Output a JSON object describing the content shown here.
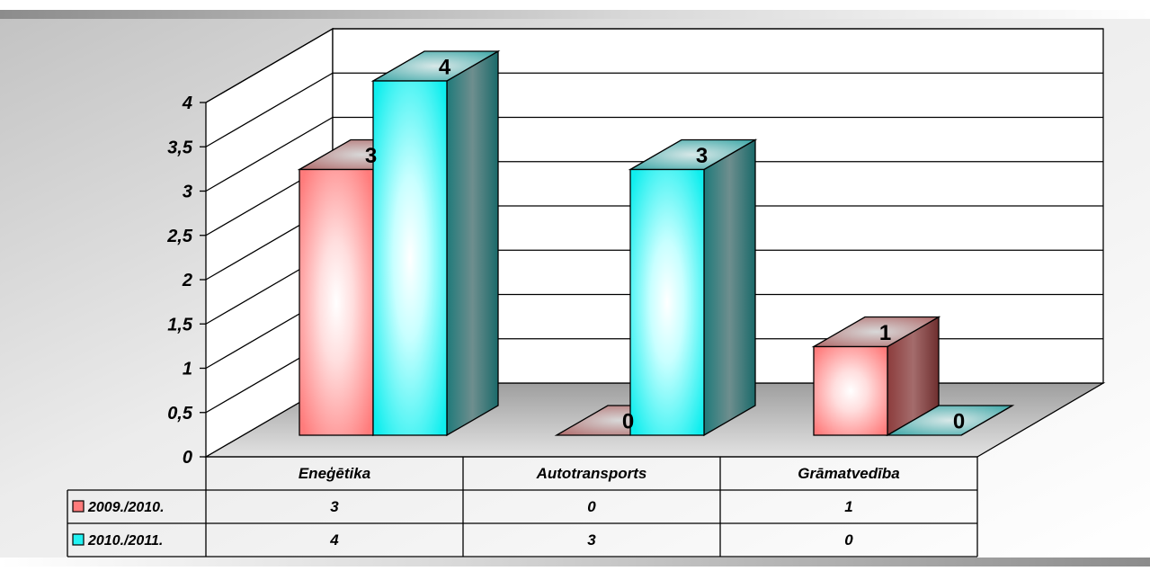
{
  "chart_data": {
    "type": "bar",
    "style": "3d-clustered-column-with-data-table",
    "categories": [
      "Eneģētika",
      "Autotransports",
      "Grāmatvedība"
    ],
    "series": [
      {
        "name": "2009./2010.",
        "values": [
          3,
          0,
          1
        ],
        "color": "#ff7b7b"
      },
      {
        "name": "2010./2011.",
        "values": [
          4,
          3,
          0
        ],
        "color": "#22f2f2"
      }
    ],
    "y_ticks": [
      "0",
      "0,5",
      "1",
      "1,5",
      "2",
      "2,5",
      "3",
      "3,5",
      "4"
    ],
    "ylim": [
      0,
      4
    ],
    "grid": true,
    "legend": "data-table"
  }
}
